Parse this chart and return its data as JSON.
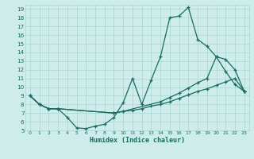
{
  "xlabel": "Humidex (Indice chaleur)",
  "bg_color": "#cdecea",
  "grid_color": "#a8d4d0",
  "line_color": "#1a6b60",
  "xlim": [
    -0.5,
    23.5
  ],
  "ylim": [
    5,
    19.5
  ],
  "xticks": [
    0,
    1,
    2,
    3,
    4,
    5,
    6,
    7,
    8,
    9,
    10,
    11,
    12,
    13,
    14,
    15,
    16,
    17,
    18,
    19,
    20,
    21,
    22,
    23
  ],
  "yticks": [
    5,
    6,
    7,
    8,
    9,
    10,
    11,
    12,
    13,
    14,
    15,
    16,
    17,
    18,
    19
  ],
  "line1_x": [
    0,
    1,
    2,
    3,
    4,
    5,
    6,
    7,
    8,
    9,
    10,
    11,
    12,
    13,
    14,
    15,
    16,
    17,
    18,
    19,
    20,
    21,
    22,
    23
  ],
  "line1_y": [
    9.0,
    8.0,
    7.5,
    7.5,
    6.5,
    5.3,
    5.2,
    5.5,
    5.7,
    6.5,
    8.2,
    11.0,
    8.0,
    10.8,
    13.5,
    18.0,
    18.2,
    19.2,
    15.5,
    14.7,
    13.5,
    11.8,
    10.3,
    9.5
  ],
  "line2_x": [
    0,
    1,
    2,
    3,
    9,
    10,
    11,
    12,
    13,
    14,
    15,
    16,
    17,
    18,
    19,
    20,
    21,
    22,
    23
  ],
  "line2_y": [
    9.0,
    8.0,
    7.5,
    7.5,
    7.0,
    7.2,
    7.3,
    7.5,
    7.8,
    8.0,
    8.3,
    8.7,
    9.1,
    9.5,
    9.8,
    10.2,
    10.6,
    11.0,
    9.5
  ],
  "line3_x": [
    0,
    1,
    2,
    3,
    9,
    10,
    14,
    15,
    16,
    17,
    18,
    19,
    20,
    21,
    22,
    23
  ],
  "line3_y": [
    9.0,
    8.0,
    7.5,
    7.5,
    7.0,
    7.2,
    8.3,
    8.8,
    9.3,
    9.9,
    10.5,
    11.0,
    13.5,
    13.2,
    12.0,
    9.5
  ]
}
